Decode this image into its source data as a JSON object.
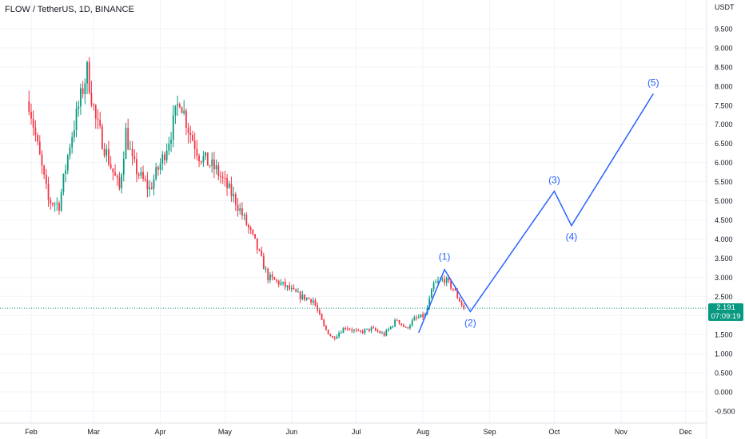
{
  "header": {
    "symbol": "FLOW / TetherUS, 1D, BINANCE"
  },
  "price_tag": {
    "price": "2.191",
    "countdown": "07:09:19",
    "color": "#089981"
  },
  "colors": {
    "up": "#089981",
    "down": "#f23645",
    "wave": "#2962ff",
    "last_line": "#089981"
  },
  "chart_data": {
    "type": "candlestick",
    "title": "FLOW / TetherUS, 1D, BINANCE",
    "y_unit": "USDT",
    "ylim": [
      -0.5,
      9.8
    ],
    "y_ticks": [
      "9.500",
      "9.000",
      "8.500",
      "8.000",
      "7.500",
      "7.000",
      "6.500",
      "6.000",
      "5.500",
      "5.000",
      "4.500",
      "4.000",
      "3.500",
      "3.000",
      "2.500",
      "2.000",
      "1.500",
      "1.000",
      "0.500",
      "0.000",
      "-0.500"
    ],
    "x_ticks": [
      "Feb",
      "Mar",
      "Apr",
      "May",
      "Jun",
      "Jul",
      "Aug",
      "Sep",
      "Oct",
      "Nov",
      "Dec"
    ],
    "grid": true,
    "last_price": 2.191,
    "anchors": [
      {
        "t": -1,
        "v": 7.6
      },
      {
        "t": 3,
        "v": 6.4
      },
      {
        "t": 8,
        "v": 5.0
      },
      {
        "t": 13,
        "v": 4.9
      },
      {
        "t": 18,
        "v": 6.5
      },
      {
        "t": 23,
        "v": 7.7
      },
      {
        "t": 26,
        "v": 8.4
      },
      {
        "t": 30,
        "v": 7.1
      },
      {
        "t": 37,
        "v": 5.9
      },
      {
        "t": 41,
        "v": 5.3
      },
      {
        "t": 44,
        "v": 6.8
      },
      {
        "t": 47,
        "v": 6.0
      },
      {
        "t": 51,
        "v": 5.6
      },
      {
        "t": 55,
        "v": 5.3
      },
      {
        "t": 61,
        "v": 6.1
      },
      {
        "t": 65,
        "v": 6.8
      },
      {
        "t": 69,
        "v": 7.7
      },
      {
        "t": 73,
        "v": 6.9
      },
      {
        "t": 78,
        "v": 6.2
      },
      {
        "t": 86,
        "v": 5.8
      },
      {
        "t": 95,
        "v": 5.0
      },
      {
        "t": 104,
        "v": 3.9
      },
      {
        "t": 110,
        "v": 3.0
      },
      {
        "t": 117,
        "v": 2.8
      },
      {
        "t": 125,
        "v": 2.5
      },
      {
        "t": 131,
        "v": 2.4
      },
      {
        "t": 136,
        "v": 1.7
      },
      {
        "t": 140,
        "v": 1.4
      },
      {
        "t": 146,
        "v": 1.7
      },
      {
        "t": 152,
        "v": 1.55
      },
      {
        "t": 158,
        "v": 1.65
      },
      {
        "t": 164,
        "v": 1.5
      },
      {
        "t": 170,
        "v": 1.9
      },
      {
        "t": 174,
        "v": 1.65
      },
      {
        "t": 178,
        "v": 1.9
      },
      {
        "t": 183,
        "v": 2.0
      },
      {
        "t": 187,
        "v": 2.8
      },
      {
        "t": 192,
        "v": 2.95
      },
      {
        "t": 196,
        "v": 2.7
      },
      {
        "t": 201,
        "v": 2.19
      }
    ],
    "elliott_wave": {
      "points": [
        {
          "date": "2024-07-29",
          "value": 1.55,
          "label": ""
        },
        {
          "date": "2024-08-10",
          "value": 3.2,
          "label": "(1)"
        },
        {
          "date": "2024-08-22",
          "value": 2.1,
          "label": "(2)"
        },
        {
          "date": "2024-09-30",
          "value": 5.25,
          "label": "(3)"
        },
        {
          "date": "2024-10-08",
          "value": 4.35,
          "label": "(4)"
        },
        {
          "date": "2024-11-15",
          "value": 7.8,
          "label": "(5)"
        }
      ]
    }
  }
}
